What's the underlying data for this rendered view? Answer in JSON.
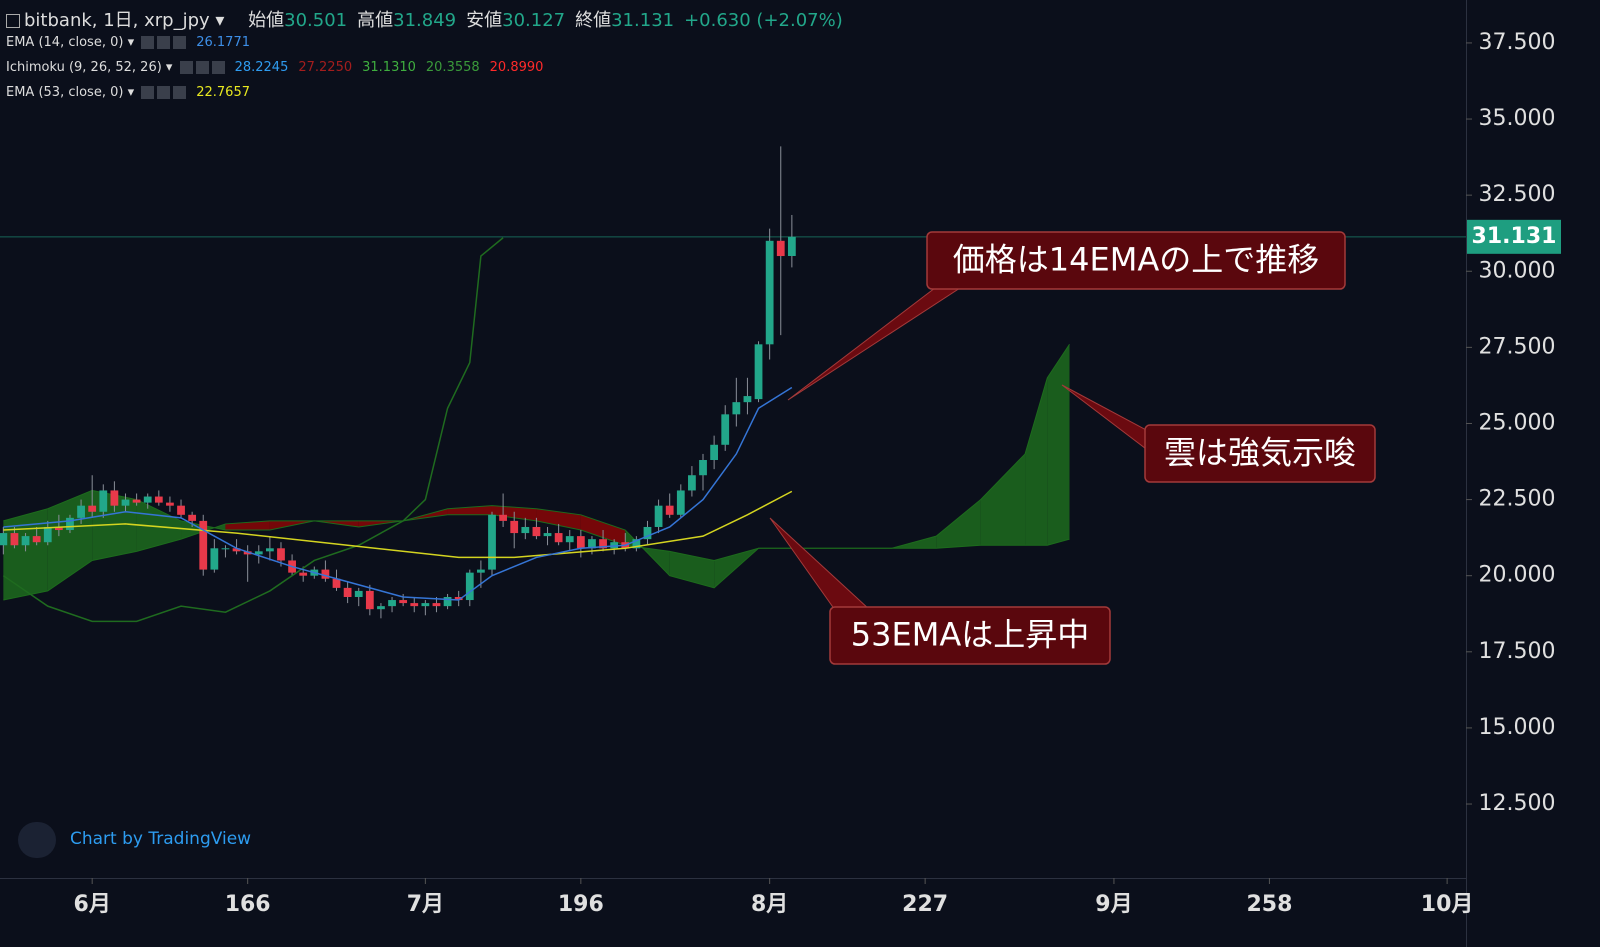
{
  "chart_data": {
    "type": "candlestick",
    "title": "bitbank, 1日, xrp_jpy",
    "header": [
      {
        "label": "始値",
        "value": "30.501"
      },
      {
        "label": "高値",
        "value": "31.849"
      },
      {
        "label": "安値",
        "value": "30.127"
      },
      {
        "label": "終値",
        "value": "31.131"
      }
    ],
    "change": "+0.630 (+2.07%)",
    "indicators": [
      {
        "name": "EMA (14, close, 0)",
        "values": [
          "26.1771"
        ],
        "colors": [
          "#3d8fe8"
        ]
      },
      {
        "name": "Ichimoku (9, 26, 52, 26)",
        "values": [
          "28.2245",
          "27.2250",
          "31.1310",
          "20.3558",
          "20.8990"
        ],
        "colors": [
          "#2f9cf0",
          "#a31d1d",
          "#3fae3f",
          "#3a9a3a",
          "#ff2a2a"
        ]
      },
      {
        "name": "EMA (53, close, 0)",
        "values": [
          "22.7657"
        ],
        "colors": [
          "#e8e820"
        ]
      }
    ],
    "x": [
      144,
      145,
      146,
      147,
      148,
      149,
      150,
      151,
      152,
      153,
      154,
      155,
      156,
      157,
      158,
      159,
      160,
      161,
      162,
      163,
      164,
      165,
      166,
      167,
      168,
      169,
      170,
      171,
      172,
      173,
      174,
      175,
      176,
      177,
      178,
      179,
      180,
      181,
      182,
      183,
      184,
      185,
      186,
      187,
      188,
      189,
      190,
      191,
      192,
      193,
      194,
      195,
      196,
      197,
      198,
      199,
      200,
      201,
      202,
      203,
      204,
      205,
      206,
      207,
      208,
      209,
      210,
      211,
      212,
      213,
      214,
      215
    ],
    "open": [
      21.0,
      21.4,
      21.0,
      21.3,
      21.1,
      21.6,
      21.5,
      21.9,
      22.3,
      22.1,
      22.8,
      22.3,
      22.5,
      22.4,
      22.6,
      22.4,
      22.3,
      22.0,
      21.8,
      20.2,
      20.9,
      20.9,
      20.8,
      20.7,
      20.8,
      20.9,
      20.5,
      20.1,
      20.0,
      20.2,
      19.9,
      19.6,
      19.3,
      19.5,
      18.9,
      19.0,
      19.2,
      19.1,
      19.0,
      19.1,
      19.0,
      19.3,
      19.2,
      20.1,
      20.2,
      22.0,
      21.8,
      21.4,
      21.6,
      21.3,
      21.4,
      21.1,
      21.3,
      20.9,
      21.2,
      20.9,
      21.1,
      20.9,
      21.2,
      21.6,
      22.3,
      22.0,
      22.8,
      23.3,
      23.8,
      24.3,
      25.3,
      25.7,
      25.8,
      27.6,
      31.0,
      30.501
    ],
    "high": [
      21.6,
      21.6,
      21.4,
      21.6,
      21.8,
      22.0,
      22.0,
      22.5,
      23.3,
      23.0,
      23.1,
      22.7,
      22.7,
      22.7,
      22.8,
      22.6,
      22.5,
      22.1,
      22.0,
      21.2,
      21.0,
      21.2,
      21.0,
      21.0,
      21.3,
      21.1,
      20.7,
      20.3,
      20.3,
      20.5,
      20.2,
      19.8,
      19.6,
      19.7,
      19.1,
      19.3,
      19.4,
      19.3,
      19.2,
      19.3,
      19.4,
      19.5,
      20.2,
      20.5,
      22.1,
      22.7,
      22.1,
      21.9,
      21.9,
      21.6,
      21.7,
      21.5,
      21.5,
      21.3,
      21.5,
      21.2,
      21.4,
      21.3,
      21.8,
      22.5,
      22.7,
      23.0,
      23.6,
      24.0,
      24.6,
      25.6,
      26.5,
      26.5,
      27.7,
      31.4,
      34.1,
      31.849
    ],
    "low": [
      20.7,
      20.9,
      20.8,
      21.0,
      21.0,
      21.3,
      21.4,
      21.7,
      21.9,
      21.9,
      22.1,
      22.1,
      22.3,
      22.2,
      22.3,
      22.1,
      21.9,
      21.6,
      20.0,
      20.1,
      20.6,
      20.7,
      19.8,
      20.4,
      20.5,
      20.3,
      20.0,
      19.8,
      19.9,
      19.8,
      19.5,
      19.1,
      19.0,
      18.7,
      18.6,
      18.8,
      19.0,
      18.8,
      18.7,
      18.8,
      18.9,
      19.0,
      19.0,
      19.6,
      20.0,
      21.6,
      20.9,
      21.2,
      21.2,
      21.0,
      21.0,
      20.8,
      20.6,
      20.7,
      20.8,
      20.7,
      20.8,
      20.8,
      21.0,
      21.4,
      21.9,
      21.9,
      22.6,
      22.8,
      23.5,
      24.1,
      24.9,
      25.3,
      25.7,
      27.1,
      27.9,
      30.127
    ],
    "close": [
      21.4,
      21.0,
      21.3,
      21.1,
      21.6,
      21.5,
      21.9,
      22.3,
      22.1,
      22.8,
      22.3,
      22.5,
      22.4,
      22.6,
      22.4,
      22.3,
      22.0,
      21.8,
      20.2,
      20.9,
      20.9,
      20.8,
      20.7,
      20.8,
      20.9,
      20.5,
      20.1,
      20.0,
      20.2,
      19.9,
      19.6,
      19.3,
      19.5,
      18.9,
      19.0,
      19.2,
      19.1,
      19.0,
      19.1,
      19.0,
      19.3,
      19.2,
      20.1,
      20.2,
      22.0,
      21.8,
      21.4,
      21.6,
      21.3,
      21.4,
      21.1,
      21.3,
      20.9,
      21.2,
      20.9,
      21.1,
      20.9,
      21.2,
      21.6,
      22.3,
      22.0,
      22.8,
      23.3,
      23.8,
      24.3,
      25.3,
      25.7,
      25.9,
      27.6,
      31.0,
      30.5,
      31.131
    ],
    "up_color": "#22a78a",
    "down_color": "#e8394a",
    "wick_color": "#8a8f99",
    "cloud": {
      "x": [
        144,
        148,
        152,
        156,
        160,
        164,
        168,
        172,
        176,
        180,
        184,
        188,
        192,
        196,
        200,
        204,
        208,
        212,
        216,
        220,
        224,
        228,
        232,
        236,
        238,
        240
      ],
      "span_a": [
        21.8,
        22.2,
        22.8,
        22.5,
        21.8,
        21.5,
        21.5,
        21.8,
        21.6,
        21.8,
        22.0,
        22.0,
        21.8,
        21.5,
        21.0,
        20.8,
        20.5,
        20.9,
        20.9,
        20.9,
        20.9,
        21.3,
        22.5,
        24.0,
        26.5,
        27.6
      ],
      "span_b": [
        19.2,
        19.5,
        20.5,
        20.8,
        21.2,
        21.7,
        21.8,
        21.8,
        21.8,
        21.8,
        22.2,
        22.3,
        22.2,
        22.0,
        21.5,
        20.0,
        19.6,
        20.9,
        20.9,
        20.9,
        20.9,
        20.9,
        21.0,
        21.0,
        21.0,
        21.2
      ],
      "up_color": "#1d6b1d",
      "down_color": "#8a0606"
    },
    "lines": [
      {
        "color": "#1f6b1f",
        "x": [
          144,
          148,
          152,
          156,
          160,
          164,
          168,
          172,
          176,
          180,
          182,
          184,
          186,
          187,
          189
        ],
        "values": [
          20.0,
          19.0,
          18.5,
          18.5,
          19.0,
          18.8,
          19.5,
          20.5,
          21.0,
          21.8,
          22.5,
          25.5,
          27.0,
          30.5,
          31.1
        ]
      },
      {
        "color": "#d4d420",
        "x": [
          144,
          155,
          165,
          175,
          185,
          190,
          200,
          207,
          211,
          215
        ],
        "values": [
          21.5,
          21.7,
          21.4,
          21.0,
          20.6,
          20.6,
          20.9,
          21.3,
          22.0,
          22.77
        ]
      },
      {
        "color": "#3575d6",
        "x": [
          144,
          150,
          155,
          160,
          165,
          170,
          175,
          180,
          185,
          188,
          192,
          196,
          200,
          204,
          207,
          210,
          212,
          215
        ],
        "values": [
          21.6,
          21.8,
          22.1,
          21.9,
          20.9,
          20.3,
          19.8,
          19.3,
          19.2,
          20.0,
          20.6,
          20.9,
          21.0,
          21.6,
          22.5,
          24.0,
          25.5,
          26.18
        ]
      }
    ],
    "last_price": 31.131,
    "last_price_color": "#1e9e80",
    "annotations": [
      {
        "text": "価格は14EMAの上で推移"
      },
      {
        "text": "雲は強気示唆"
      },
      {
        "text": "53EMAは上昇中"
      }
    ],
    "watermark": "Chart by TradingView",
    "xlim": [
      143.7,
      275.7
    ],
    "xticks": [
      {
        "value": 152,
        "label": "6月"
      },
      166,
      {
        "value": 182,
        "label": "7月"
      },
      196,
      {
        "value": 213,
        "label": "8月"
      },
      227,
      {
        "value": 244,
        "label": "9月"
      },
      258,
      {
        "value": 274,
        "label": "10月"
      }
    ],
    "ylim": [
      10.07,
      38.91
    ],
    "yticks": [
      {
        "value": 12.5,
        "label": "12.500"
      },
      {
        "value": 15,
        "label": "15.000"
      },
      {
        "value": 17.5,
        "label": "17.500"
      },
      {
        "value": 20,
        "label": "20.000"
      },
      {
        "value": 22.5,
        "label": "22.500"
      },
      {
        "value": 25,
        "label": "25.000"
      },
      {
        "value": 27.5,
        "label": "27.500"
      },
      {
        "value": 30,
        "label": "30.000"
      },
      {
        "value": 32.5,
        "label": "32.500"
      },
      {
        "value": 35,
        "label": "35.000"
      },
      {
        "value": 37.5,
        "label": "37.500"
      }
    ]
  }
}
